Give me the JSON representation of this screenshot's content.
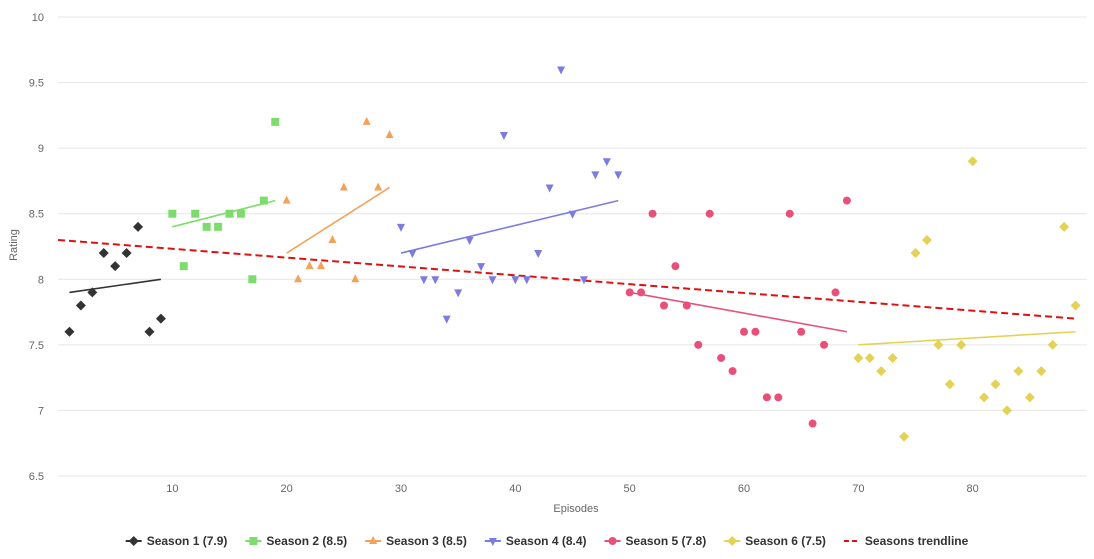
{
  "chart_data": {
    "type": "scatter",
    "xlabel": "Episodes",
    "ylabel": "Rating",
    "xlim": [
      0,
      90
    ],
    "ylim": [
      6.5,
      10
    ],
    "x_ticks": [
      10,
      20,
      30,
      40,
      50,
      60,
      70,
      80
    ],
    "y_ticks": [
      6.5,
      7,
      7.5,
      8,
      8.5,
      9,
      9.5,
      10
    ],
    "y_tick_labels": [
      "6.5",
      "7",
      "7.5",
      "8",
      "8.5",
      "9",
      "9.5",
      "10"
    ],
    "grid": "horizontal",
    "legend_position": "bottom",
    "series": [
      {
        "name": "Season 1 (7.9)",
        "marker": "diamond",
        "color": "#333333",
        "points": [
          [
            1,
            7.6
          ],
          [
            2,
            7.8
          ],
          [
            3,
            7.9
          ],
          [
            4,
            8.2
          ],
          [
            5,
            8.1
          ],
          [
            6,
            8.2
          ],
          [
            7,
            8.4
          ],
          [
            8,
            7.6
          ],
          [
            9,
            7.7
          ]
        ],
        "trend": [
          [
            1,
            7.9
          ],
          [
            9,
            8.0
          ]
        ]
      },
      {
        "name": "Season 2 (8.5)",
        "marker": "square",
        "color": "#7edc6e",
        "points": [
          [
            10,
            8.5
          ],
          [
            11,
            8.1
          ],
          [
            12,
            8.5
          ],
          [
            13,
            8.4
          ],
          [
            14,
            8.4
          ],
          [
            15,
            8.5
          ],
          [
            16,
            8.5
          ],
          [
            17,
            8.0
          ],
          [
            18,
            8.6
          ],
          [
            19,
            9.2
          ]
        ],
        "trend": [
          [
            10,
            8.4
          ],
          [
            19,
            8.6
          ]
        ]
      },
      {
        "name": "Season 3 (8.5)",
        "marker": "triangle-up",
        "color": "#f4a259",
        "points": [
          [
            20,
            8.6
          ],
          [
            21,
            8.0
          ],
          [
            22,
            8.1
          ],
          [
            23,
            8.1
          ],
          [
            24,
            8.3
          ],
          [
            25,
            8.7
          ],
          [
            26,
            8.0
          ],
          [
            27,
            9.2
          ],
          [
            28,
            8.7
          ],
          [
            29,
            9.1
          ]
        ],
        "trend": [
          [
            20,
            8.2
          ],
          [
            29,
            8.7
          ]
        ]
      },
      {
        "name": "Season 4 (8.4)",
        "marker": "triangle-down",
        "color": "#7b7be0",
        "points": [
          [
            30,
            8.4
          ],
          [
            31,
            8.2
          ],
          [
            32,
            8.0
          ],
          [
            33,
            8.0
          ],
          [
            34,
            7.7
          ],
          [
            35,
            7.9
          ],
          [
            36,
            8.3
          ],
          [
            37,
            8.1
          ],
          [
            38,
            8.0
          ],
          [
            39,
            9.1
          ],
          [
            40,
            8.0
          ],
          [
            41,
            8.0
          ],
          [
            42,
            8.2
          ],
          [
            43,
            8.7
          ],
          [
            44,
            9.6
          ],
          [
            45,
            8.5
          ],
          [
            46,
            8.0
          ],
          [
            47,
            8.8
          ],
          [
            48,
            8.9
          ],
          [
            49,
            8.8
          ]
        ],
        "trend": [
          [
            30,
            8.2
          ],
          [
            49,
            8.6
          ]
        ]
      },
      {
        "name": "Season 5 (7.8)",
        "marker": "circle",
        "color": "#e8507a",
        "points": [
          [
            50,
            7.9
          ],
          [
            51,
            7.9
          ],
          [
            52,
            8.5
          ],
          [
            53,
            7.8
          ],
          [
            54,
            8.1
          ],
          [
            55,
            7.8
          ],
          [
            56,
            7.5
          ],
          [
            57,
            8.5
          ],
          [
            58,
            7.4
          ],
          [
            59,
            7.3
          ],
          [
            60,
            7.6
          ],
          [
            61,
            7.6
          ],
          [
            62,
            7.1
          ],
          [
            63,
            7.1
          ],
          [
            64,
            8.5
          ],
          [
            65,
            7.6
          ],
          [
            66,
            6.9
          ],
          [
            67,
            7.5
          ],
          [
            68,
            7.9
          ],
          [
            69,
            8.6
          ]
        ],
        "trend": [
          [
            50,
            7.9
          ],
          [
            69,
            7.6
          ]
        ]
      },
      {
        "name": "Season 6 (7.5)",
        "marker": "diamond",
        "color": "#e3d255",
        "points": [
          [
            70,
            7.4
          ],
          [
            71,
            7.4
          ],
          [
            72,
            7.3
          ],
          [
            73,
            7.4
          ],
          [
            74,
            6.8
          ],
          [
            75,
            8.2
          ],
          [
            76,
            8.3
          ],
          [
            77,
            7.5
          ],
          [
            78,
            7.2
          ],
          [
            79,
            7.5
          ],
          [
            80,
            8.9
          ],
          [
            81,
            7.1
          ],
          [
            82,
            7.2
          ],
          [
            83,
            7.0
          ],
          [
            84,
            7.3
          ],
          [
            85,
            7.1
          ],
          [
            86,
            7.3
          ],
          [
            87,
            7.5
          ],
          [
            88,
            8.4
          ],
          [
            89,
            7.8
          ]
        ],
        "trend": [
          [
            70,
            7.5
          ],
          [
            89,
            7.6
          ]
        ]
      }
    ],
    "overall_trendline": {
      "name": "Seasons trendline",
      "color": "#dd1111",
      "dashed": true,
      "points": [
        [
          0,
          8.3
        ],
        [
          89,
          7.7
        ]
      ]
    }
  }
}
